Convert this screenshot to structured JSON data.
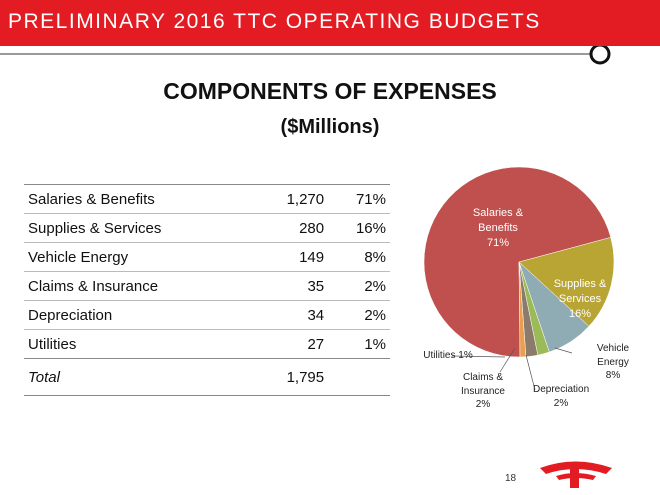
{
  "header": {
    "title": "PRELIMINARY 2016 TTC OPERATING BUDGETS"
  },
  "heading": {
    "title": "COMPONENTS OF EXPENSES",
    "subtitle": "($Millions)"
  },
  "table": {
    "rows": [
      [
        "Salaries & Benefits",
        "1,270",
        "71%"
      ],
      [
        "Supplies & Services",
        "280",
        "16%"
      ],
      [
        "Vehicle Energy",
        "149",
        "8%"
      ],
      [
        "Claims & Insurance",
        "35",
        "2%"
      ],
      [
        "Depreciation",
        "34",
        "2%"
      ],
      [
        "Utilities",
        "27",
        "1%"
      ]
    ],
    "total": [
      "Total",
      "1,795"
    ]
  },
  "chart_data": {
    "type": "pie",
    "categories": [
      "Salaries & Benefits",
      "Supplies & Services",
      "Vehicle Energy",
      "Claims & Insurance",
      "Depreciation",
      "Utilities"
    ],
    "values": [
      71,
      16,
      8,
      2,
      2,
      1
    ],
    "value_labels": [
      "71%",
      "16%",
      "8%",
      "2%",
      "2%",
      "1%"
    ],
    "colors": [
      "#c0504d",
      "#b9a534",
      "#8fabb3",
      "#9bbb59",
      "#8c7a6b",
      "#e8a050"
    ]
  },
  "footer": {
    "page": "18"
  }
}
